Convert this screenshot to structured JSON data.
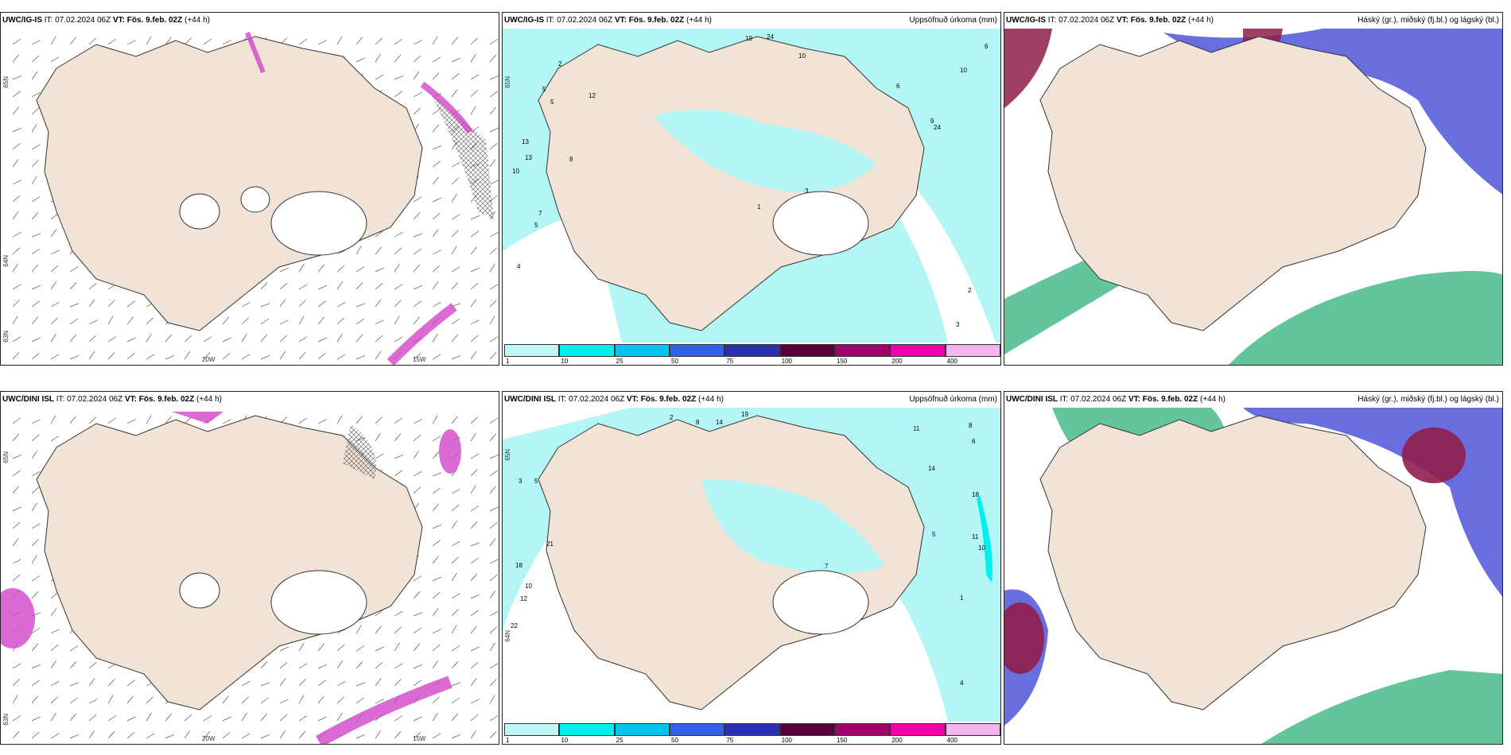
{
  "panels": [
    {
      "id": "p1",
      "title_model": "UWC/IG-IS",
      "title_it": "IT: 07.02.2024 06Z",
      "title_vt_label": "VT:",
      "title_vt": "Fös. 9.feb. 02Z",
      "title_lead": "(+44 h)",
      "right_label": "",
      "lat_labels": [
        "65N",
        "64N",
        "63N"
      ],
      "lon_labels": [
        "20W",
        "15W"
      ]
    },
    {
      "id": "p2",
      "title_model": "UWC/IG-IS",
      "title_it": "IT: 07.02.2024 06Z",
      "title_vt_label": "VT:",
      "title_vt": "Fös. 9.feb. 02Z",
      "title_lead": "(+44 h)",
      "right_label": "Uppsöfnuð úrkoma (mm)",
      "lat_labels": [
        "65N"
      ],
      "numbers": [
        "19",
        "24",
        "10",
        "2",
        "5",
        "5",
        "12",
        "6",
        "13",
        "10",
        "8",
        "9",
        "24",
        "13",
        "10",
        "6",
        "2",
        "3",
        "5",
        "4",
        "1",
        "3",
        "7"
      ]
    },
    {
      "id": "p3",
      "title_model": "UWC/IG-IS",
      "title_it": "IT: 07.02.2024 06Z",
      "title_vt_label": "VT:",
      "title_vt": "Fös. 9.feb. 02Z",
      "title_lead": "(+44 h)",
      "right_label": "Háský (gr.), miðský (fj.bl.) og lágský (bl.)"
    },
    {
      "id": "p4",
      "title_model": "UWC/DINI ISL",
      "title_it": "IT: 07.02.2024 06Z",
      "title_vt_label": "VT:",
      "title_vt": "Fös. 9.feb. 02Z",
      "title_lead": "(+44 h)",
      "right_label": "",
      "lat_labels": [
        "65N",
        "63N"
      ],
      "lon_labels": [
        "20W",
        "15W"
      ]
    },
    {
      "id": "p5",
      "title_model": "UWC/DINI ISL",
      "title_it": "IT: 07.02.2024 06Z",
      "title_vt_label": "VT:",
      "title_vt": "Fös. 9.feb. 02Z",
      "title_lead": "(+44 h)",
      "right_label": "Uppsöfnuð úrkoma (mm)",
      "lat_labels": [
        "65N",
        "64N"
      ],
      "numbers": [
        "2",
        "8",
        "14",
        "19",
        "11",
        "6",
        "8",
        "14",
        "18",
        "21",
        "18",
        "10",
        "12",
        "22",
        "11",
        "10",
        "3",
        "5",
        "4",
        "1",
        "7",
        "2",
        "5"
      ]
    },
    {
      "id": "p6",
      "title_model": "UWC/DINI ISL",
      "title_it": "IT: 07.02.2024 06Z",
      "title_vt_label": "VT:",
      "title_vt": "Fös. 9.feb. 02Z",
      "title_lead": "(+44 h)",
      "right_label": "Háský (gr.), miðský (fj.bl.) og lágský (bl.)"
    }
  ],
  "colorbar": {
    "ticks": [
      "1",
      "10",
      "25",
      "50",
      "75",
      "100",
      "150",
      "200",
      "400"
    ],
    "colors": [
      "#bff7f7",
      "#00f0f0",
      "#00c6ef",
      "#2f62e8",
      "#2a2fb5",
      "#5a0038",
      "#a2006a",
      "#f000a8",
      "#f4b4ef"
    ]
  },
  "colors": {
    "land": "#f1e4d7",
    "precip_light": "#b3f6f5",
    "wind_snow_pink": "#d245c8",
    "cloud_high": "#2fb27a",
    "cloud_mid": "#4e55d8",
    "cloud_low": "#8f1d4b"
  }
}
